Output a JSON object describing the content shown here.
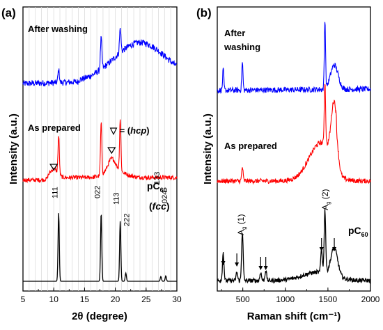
{
  "chart_data": [
    {
      "panel_label": "(a)",
      "type": "line",
      "xlabel": "2θ (degree)",
      "ylabel": "Intensity (a.u.)",
      "xlim": [
        5,
        30
      ],
      "xticks": [
        "5",
        "10",
        "15",
        "20",
        "25",
        "30"
      ],
      "grid": "vertical",
      "annotations": {
        "after_washing": "After washing",
        "as_prepared": "As prepared",
        "hcp_legend": "▽ = (hcp)",
        "sample_name": "pC60",
        "phase": "(fcc)"
      },
      "peak_labels": [
        "111",
        "022",
        "113",
        "222",
        "133",
        "024"
      ],
      "peak_positions": [
        10.8,
        17.7,
        20.8,
        21.7,
        27.4,
        28.2
      ],
      "hcp_markers": [
        10.0,
        19.4
      ],
      "series": [
        {
          "label": "After washing",
          "color": "#0000ff",
          "peaks": [
            [
              10.8,
              0.18
            ],
            [
              17.7,
              0.45
            ],
            [
              20.8,
              0.35
            ]
          ],
          "broad_hump": 24
        },
        {
          "label": "As prepared",
          "color": "#ff0000",
          "peaks": [
            [
              10.8,
              0.55
            ],
            [
              17.7,
              0.75
            ],
            [
              20.8,
              0.75
            ],
            [
              10.0,
              0.12
            ],
            [
              19.4,
              0.18
            ]
          ]
        },
        {
          "label": "pC60 (fcc)",
          "color": "#000000",
          "peaks": [
            [
              10.8,
              1.0
            ],
            [
              17.7,
              1.0
            ],
            [
              20.8,
              0.88
            ],
            [
              21.7,
              0.12
            ],
            [
              27.4,
              0.07
            ],
            [
              28.2,
              0.08
            ]
          ]
        }
      ]
    },
    {
      "panel_label": "(b)",
      "type": "line",
      "xlabel": "Raman shift  (cm⁻¹)",
      "ylabel": "Intensity (a.u.)",
      "xlim": [
        200,
        2000
      ],
      "xticks": [
        "500",
        "1000",
        "1500",
        "2000"
      ],
      "annotations": {
        "after_washing_1": "After",
        "after_washing_2": "washing",
        "as_prepared": "As prepared",
        "ag1": "A",
        "ag1_sub": "g",
        "ag1_num": "(1)",
        "ag2": "A",
        "ag2_sub": "g",
        "ag2_num": "(2)",
        "sample": "pC",
        "sample_sub": "60"
      },
      "arrow_positions": [
        270,
        430,
        710,
        770,
        1425,
        1575
      ],
      "series": [
        {
          "label": "After washing",
          "color": "#0000ff",
          "peaks": [
            [
              270,
              0.3
            ],
            [
              495,
              0.4
            ],
            [
              1465,
              1.0
            ],
            [
              1575,
              0.35
            ]
          ]
        },
        {
          "label": "As prepared",
          "color": "#ff0000",
          "peaks": [
            [
              495,
              0.2
            ],
            [
              1465,
              0.9
            ],
            [
              1575,
              0.85
            ]
          ],
          "broad_hump": 1400
        },
        {
          "label": "pC60",
          "color": "#000000",
          "peaks": [
            [
              270,
              0.4
            ],
            [
              430,
              0.12
            ],
            [
              495,
              0.7
            ],
            [
              710,
              0.12
            ],
            [
              770,
              0.15
            ],
            [
              1425,
              0.35
            ],
            [
              1465,
              0.9
            ],
            [
              1575,
              0.4
            ]
          ]
        }
      ]
    }
  ]
}
